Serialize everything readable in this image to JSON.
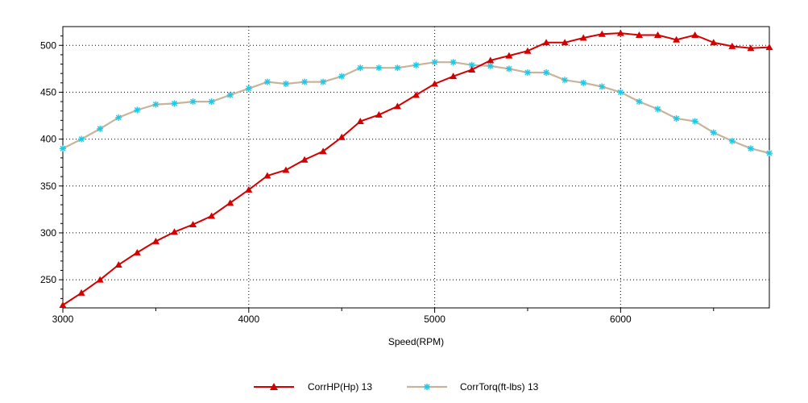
{
  "chart_data": {
    "type": "line",
    "title": "",
    "xlabel": "Speed(RPM)",
    "ylabel": "",
    "xlim": [
      3000,
      6800
    ],
    "ylim": [
      220,
      520
    ],
    "x_ticks": [
      3000,
      4000,
      5000,
      6000
    ],
    "y_ticks": [
      250,
      300,
      350,
      400,
      450,
      500
    ],
    "grid": true,
    "legend_position": "bottom-center",
    "x": [
      3000,
      3100,
      3200,
      3300,
      3400,
      3500,
      3600,
      3700,
      3800,
      3900,
      4000,
      4100,
      4200,
      4300,
      4400,
      4500,
      4600,
      4700,
      4800,
      4900,
      5000,
      5100,
      5200,
      5300,
      5400,
      5500,
      5600,
      5700,
      5800,
      5900,
      6000,
      6100,
      6200,
      6300,
      6400,
      6500,
      6600,
      6700,
      6800
    ],
    "series": [
      {
        "name": "CorrHP(Hp) 13",
        "color": "#d40000",
        "marker": "triangle",
        "values": [
          223,
          236,
          250,
          266,
          279,
          291,
          301,
          309,
          318,
          332,
          346,
          361,
          367,
          378,
          387,
          402,
          419,
          426,
          435,
          447,
          459,
          467,
          474,
          484,
          489,
          494,
          503,
          503,
          508,
          512,
          513,
          511,
          511,
          506,
          511,
          503,
          499,
          497,
          498
        ]
      },
      {
        "name": "CorrTorq(ft-lbs) 13",
        "color": "#c8b49a",
        "marker_color": "#1ec8e6",
        "marker": "star",
        "values": [
          390,
          400,
          411,
          423,
          431,
          437,
          438,
          440,
          440,
          447,
          454,
          461,
          459,
          461,
          461,
          467,
          476,
          476,
          476,
          479,
          482,
          482,
          479,
          478,
          475,
          471,
          471,
          463,
          460,
          456,
          450,
          440,
          432,
          422,
          419,
          407,
          398,
          390,
          385
        ]
      }
    ]
  }
}
